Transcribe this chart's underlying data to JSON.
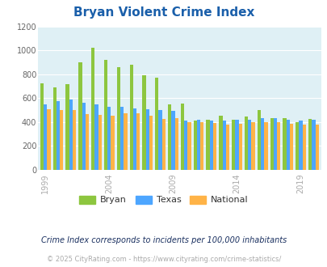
{
  "title": "Bryan Violent Crime Index",
  "years": [
    1999,
    2000,
    2001,
    2002,
    2003,
    2004,
    2005,
    2006,
    2007,
    2008,
    2009,
    2010,
    2011,
    2012,
    2013,
    2014,
    2015,
    2016,
    2017,
    2018,
    2019,
    2020
  ],
  "bryan": [
    725,
    690,
    720,
    900,
    1020,
    920,
    860,
    880,
    790,
    775,
    545,
    555,
    410,
    415,
    455,
    415,
    445,
    500,
    435,
    435,
    400,
    425
  ],
  "texas": [
    545,
    575,
    585,
    560,
    545,
    530,
    525,
    515,
    510,
    500,
    490,
    410,
    415,
    410,
    410,
    415,
    420,
    435,
    430,
    415,
    410,
    420
  ],
  "national": [
    505,
    500,
    500,
    465,
    460,
    455,
    475,
    475,
    455,
    425,
    430,
    400,
    395,
    390,
    380,
    385,
    395,
    400,
    395,
    385,
    380,
    380
  ],
  "bryan_color": "#8dc63f",
  "texas_color": "#4da6ff",
  "national_color": "#ffb347",
  "bg_color": "#dff0f5",
  "ylim": [
    0,
    1200
  ],
  "yticks": [
    0,
    200,
    400,
    600,
    800,
    1000,
    1200
  ],
  "legend_labels": [
    "Bryan",
    "Texas",
    "National"
  ],
  "footnote1": "Crime Index corresponds to incidents per 100,000 inhabitants",
  "footnote2": "© 2025 CityRating.com - https://www.cityrating.com/crime-statistics/",
  "xtick_years": [
    1999,
    2004,
    2009,
    2014,
    2019
  ],
  "title_color": "#1a5faa",
  "title_fontsize": 11,
  "footnote1_color": "#1a3060",
  "footnote2_color": "#aaaaaa",
  "xtick_color": "#aaaaaa",
  "ytick_color": "#666666"
}
